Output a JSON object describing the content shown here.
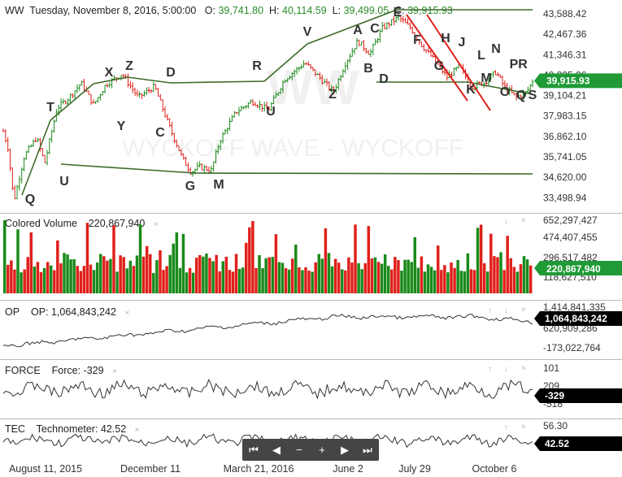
{
  "header": {
    "symbol": "WW",
    "datetime": "Tuesday, November 8, 2016, 5:00:00",
    "open_label": "O:",
    "open": "39,741.80",
    "high_label": "H:",
    "high": "40,114.59",
    "low_label": "L:",
    "low": "39,499.05",
    "close_label": "C:",
    "close": "39,915.93"
  },
  "watermark": {
    "big": "WW",
    "line": "WYCKOFF WAVE - WYCKOFF"
  },
  "colors": {
    "up": "#1a8a1a",
    "down": "#e0201a",
    "trend": "#3d6b2a",
    "channel": "#e0201a",
    "line": "#333333",
    "tag_green": "#1f9a36",
    "tag_black": "#000000"
  },
  "price_pane": {
    "y_ticks": [
      "43,588.42",
      "42,467.36",
      "41,346.31",
      "40,225.26",
      "39,104.21",
      "37,983.15",
      "36,862.10",
      "35,741.05",
      "34,620.00",
      "33,498.94"
    ],
    "y_values": [
      43588.42,
      42467.36,
      41346.31,
      40225.26,
      39104.21,
      37983.15,
      36862.1,
      35741.05,
      34620.0,
      33498.94
    ],
    "last_tag": "39,915.93",
    "wave_labels": [
      "T",
      "X",
      "Z",
      "D",
      "R",
      "V",
      "A",
      "C",
      "E",
      "Q",
      "U",
      "Y",
      "C",
      "G",
      "M",
      "U",
      "Z",
      "B",
      "D",
      "F",
      "H",
      "J",
      "N",
      "L",
      "P",
      "R",
      "G",
      "K",
      "M",
      "O",
      "Q",
      "S"
    ]
  },
  "volume_pane": {
    "title": "Colored Volume",
    "value": "220,867,940",
    "y_ticks": [
      "652,297,427",
      "474,407,455",
      "296,517,482",
      "118,627,510"
    ],
    "last_tag": "220,867,940"
  },
  "op_pane": {
    "title": "OP",
    "label": "OP: 1,064,843,242",
    "y_ticks": [
      "1,414,841,335",
      "620,909,286",
      "-173,022,764"
    ],
    "last_tag": "1,064,843,242"
  },
  "force_pane": {
    "title": "FORCE",
    "label": "Force: -329",
    "y_ticks": [
      "101",
      "209",
      "-518"
    ],
    "last_tag": "-329"
  },
  "tec_pane": {
    "title": "TEC",
    "label": "Technometer: 42.52",
    "y_ticks": [
      "56.30"
    ],
    "last_tag": "42.52"
  },
  "x_axis": {
    "labels": [
      "August 11, 2015",
      "December 11",
      "March 21, 2016",
      "June 2",
      "July 29",
      "October 6"
    ]
  },
  "navigator": {
    "buttons": [
      "⏮",
      "◀",
      "−",
      "+",
      "▶",
      "⏭"
    ]
  },
  "pane_controls": {
    "down": "↓",
    "close": "×",
    "up": "↑"
  },
  "chart_data": {
    "type": "ohlc",
    "title": "",
    "series": [
      {
        "name": "WW",
        "values_anchor": [
          [
            0,
            37800
          ],
          [
            10,
            36200
          ],
          [
            17,
            33300
          ],
          [
            30,
            35800
          ],
          [
            45,
            36800
          ],
          [
            55,
            35400
          ],
          [
            70,
            38400
          ],
          [
            85,
            39000
          ],
          [
            100,
            39800
          ],
          [
            115,
            38600
          ],
          [
            130,
            39700
          ],
          [
            150,
            40300
          ],
          [
            170,
            39000
          ],
          [
            190,
            39600
          ],
          [
            210,
            37200
          ],
          [
            225,
            35600
          ],
          [
            235,
            34900
          ],
          [
            245,
            35200
          ],
          [
            260,
            35000
          ],
          [
            270,
            36600
          ],
          [
            290,
            38200
          ],
          [
            310,
            38800
          ],
          [
            330,
            38300
          ],
          [
            350,
            40000
          ],
          [
            375,
            40900
          ],
          [
            395,
            40000
          ],
          [
            410,
            39300
          ],
          [
            425,
            40900
          ],
          [
            440,
            42100
          ],
          [
            455,
            41400
          ],
          [
            470,
            42800
          ],
          [
            490,
            43400
          ],
          [
            505,
            42800
          ],
          [
            520,
            41800
          ],
          [
            535,
            41000
          ],
          [
            550,
            40100
          ],
          [
            565,
            40700
          ],
          [
            580,
            39600
          ],
          [
            595,
            39800
          ],
          [
            610,
            40400
          ],
          [
            620,
            39600
          ],
          [
            635,
            39000
          ],
          [
            648,
            39300
          ],
          [
            655,
            39900
          ]
        ]
      }
    ],
    "ylim": [
      33200,
      43900
    ]
  }
}
